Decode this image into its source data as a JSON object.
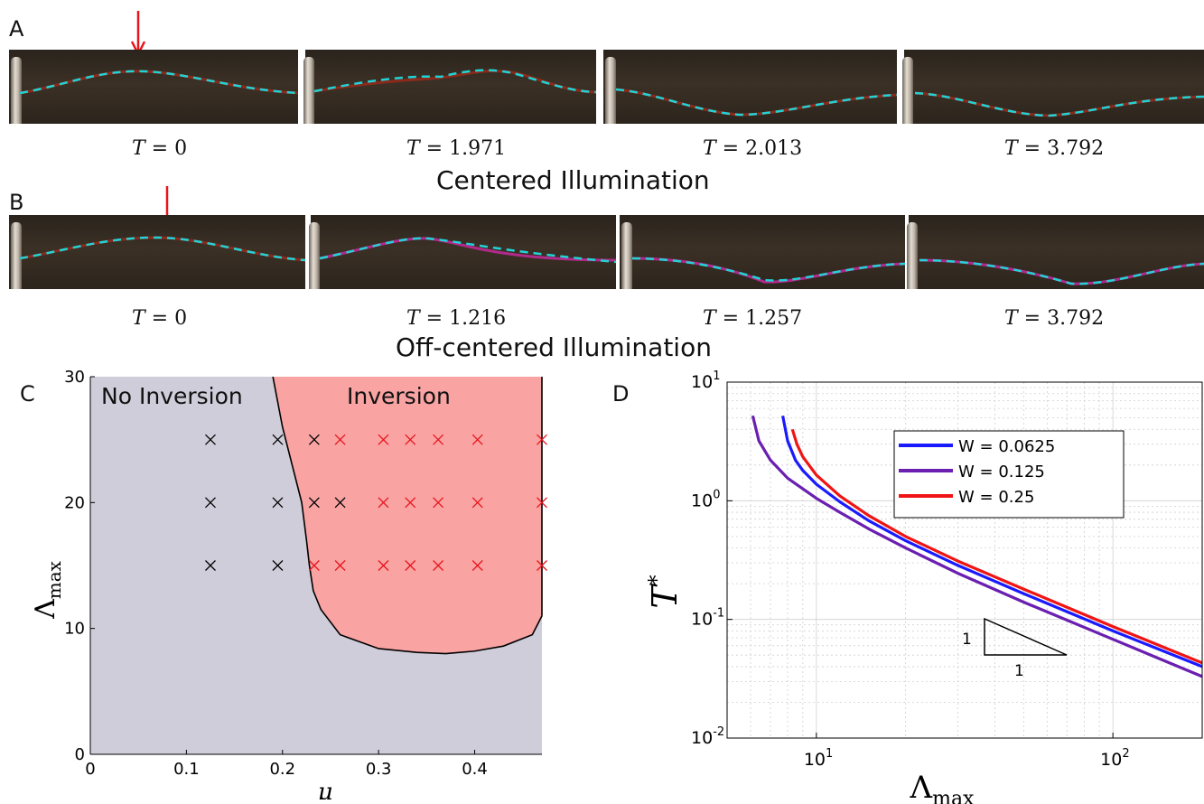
{
  "panels": {
    "a": {
      "letter": "A",
      "caption": "Centered Illumination",
      "times": [
        "0",
        "1.971",
        "2.013",
        "3.792"
      ]
    },
    "b": {
      "letter": "B",
      "caption": "Off-centered Illumination",
      "times": [
        "0",
        "1.216",
        "1.257",
        "3.792"
      ]
    },
    "c": {
      "letter": "C"
    },
    "d": {
      "letter": "D"
    }
  },
  "colors": {
    "no_inversion_fill": "#cfcdd9",
    "inversion_fill": "#f9a3a3",
    "cross_black": "#000000",
    "cross_red": "#e8141c",
    "fit_dash": "#22d3d6",
    "arrow": "#e8141c",
    "w1": "#1a1aff",
    "w2": "#6a1fb0",
    "w3": "#f01414"
  },
  "chart_data": [
    {
      "type": "scatter",
      "panel": "C",
      "xlabel": "μ",
      "ylabel": "Λmax",
      "xlim": [
        0,
        0.47
      ],
      "ylim": [
        0,
        30
      ],
      "xticks": [
        "0",
        "0.1",
        "0.2",
        "0.3",
        "0.4"
      ],
      "yticks": [
        "0",
        "10",
        "20",
        "30"
      ],
      "region_labels": {
        "no_inversion": "No Inversion",
        "inversion": "Inversion"
      },
      "boundary": [
        [
          0.19,
          30
        ],
        [
          0.2,
          26
        ],
        [
          0.21,
          23
        ],
        [
          0.22,
          20
        ],
        [
          0.225,
          17
        ],
        [
          0.228,
          15
        ],
        [
          0.232,
          13
        ],
        [
          0.24,
          11.5
        ],
        [
          0.26,
          9.5
        ],
        [
          0.3,
          8.4
        ],
        [
          0.34,
          8.1
        ],
        [
          0.37,
          8.0
        ],
        [
          0.4,
          8.2
        ],
        [
          0.43,
          8.6
        ],
        [
          0.46,
          9.5
        ],
        [
          0.47,
          11
        ]
      ],
      "inversion_upper_x": 0.47,
      "series": [
        {
          "name": "no inversion",
          "color": "#000000",
          "points": [
            [
              0.125,
              25
            ],
            [
              0.195,
              25
            ],
            [
              0.233,
              25
            ],
            [
              0.125,
              20
            ],
            [
              0.195,
              20
            ],
            [
              0.233,
              20
            ],
            [
              0.26,
              20
            ],
            [
              0.125,
              15
            ],
            [
              0.195,
              15
            ]
          ]
        },
        {
          "name": "inversion",
          "color": "#e8141c",
          "points": [
            [
              0.26,
              25
            ],
            [
              0.305,
              25
            ],
            [
              0.333,
              25
            ],
            [
              0.362,
              25
            ],
            [
              0.403,
              25
            ],
            [
              0.47,
              25
            ],
            [
              0.305,
              20
            ],
            [
              0.333,
              20
            ],
            [
              0.362,
              20
            ],
            [
              0.403,
              20
            ],
            [
              0.47,
              20
            ],
            [
              0.233,
              15
            ],
            [
              0.26,
              15
            ],
            [
              0.305,
              15
            ],
            [
              0.333,
              15
            ],
            [
              0.362,
              15
            ],
            [
              0.403,
              15
            ],
            [
              0.47,
              15
            ]
          ]
        }
      ]
    },
    {
      "type": "line",
      "panel": "D",
      "xlabel": "Λmax",
      "ylabel": "T*",
      "xscale": "log",
      "yscale": "log",
      "xlim": [
        5,
        200
      ],
      "ylim": [
        0.01,
        10
      ],
      "xticks": [
        {
          "base": "10",
          "exp": "1"
        },
        {
          "base": "10",
          "exp": "2"
        }
      ],
      "yticks": [
        {
          "base": "10",
          "exp": "-2"
        },
        {
          "base": "10",
          "exp": "-1"
        },
        {
          "base": "10",
          "exp": "0"
        },
        {
          "base": "10",
          "exp": "1"
        }
      ],
      "grid": true,
      "legend": "top-right",
      "slope_triangle": {
        "rise_label": "1",
        "run_label": "1"
      },
      "series": [
        {
          "name": "W = 0.0625",
          "color": "#1a1aff",
          "points": [
            [
              7.7,
              5.2
            ],
            [
              8,
              3.2
            ],
            [
              8.5,
              2.2
            ],
            [
              9,
              1.8
            ],
            [
              10,
              1.38
            ],
            [
              12,
              0.98
            ],
            [
              15,
              0.68
            ],
            [
              20,
              0.46
            ],
            [
              30,
              0.285
            ],
            [
              50,
              0.165
            ],
            [
              100,
              0.08
            ],
            [
              200,
              0.04
            ]
          ]
        },
        {
          "name": "W = 0.125",
          "color": "#6a1fb0",
          "points": [
            [
              6.1,
              5.2
            ],
            [
              6.4,
              3.2
            ],
            [
              7,
              2.2
            ],
            [
              8,
              1.55
            ],
            [
              10,
              1.05
            ],
            [
              12,
              0.8
            ],
            [
              15,
              0.58
            ],
            [
              20,
              0.4
            ],
            [
              30,
              0.245
            ],
            [
              50,
              0.14
            ],
            [
              100,
              0.068
            ],
            [
              200,
              0.033
            ]
          ]
        },
        {
          "name": "W = 0.25",
          "color": "#f01414",
          "points": [
            [
              8.3,
              4.0
            ],
            [
              8.6,
              3.0
            ],
            [
              9,
              2.35
            ],
            [
              10,
              1.65
            ],
            [
              12,
              1.1
            ],
            [
              15,
              0.75
            ],
            [
              20,
              0.5
            ],
            [
              30,
              0.31
            ],
            [
              50,
              0.18
            ],
            [
              100,
              0.087
            ],
            [
              200,
              0.043
            ]
          ]
        }
      ]
    }
  ]
}
